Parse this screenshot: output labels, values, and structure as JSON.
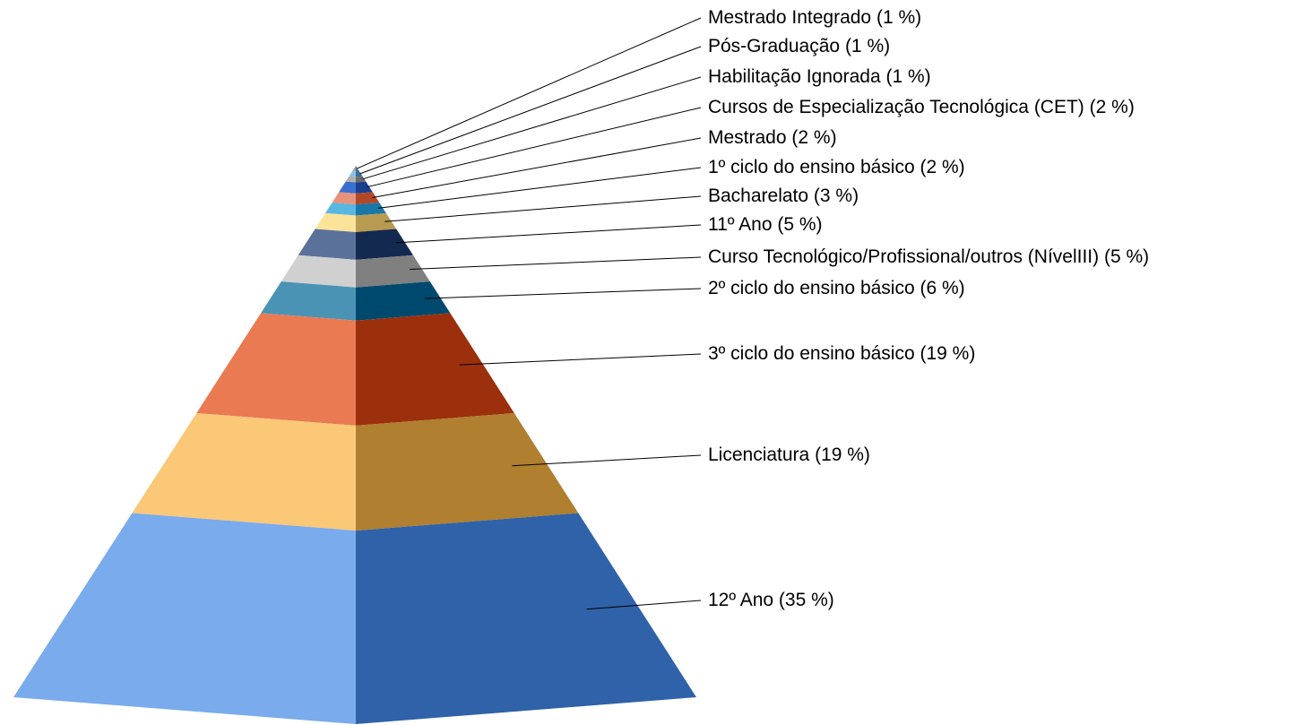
{
  "chart_data": {
    "type": "pyramid",
    "categories": [
      "Mestrado Integrado",
      "Pós-Graduação",
      "Habilitação Ignorada",
      "Cursos de Especialização Tecnológica (CET)",
      "Mestrado",
      "1º ciclo do ensino básico",
      "Bacharelato",
      "11º Ano",
      "Curso Tecnológico/Profissional/outros (NívelIII)",
      "2º ciclo do ensino básico",
      "3º ciclo do ensino básico",
      "Licenciatura",
      "12º Ano"
    ],
    "values": [
      1,
      1,
      1,
      2,
      2,
      2,
      3,
      5,
      5,
      6,
      19,
      19,
      35
    ],
    "value_labels": [
      "(1 %)",
      "(1 %)",
      "(1 %)",
      "(2 %)",
      "(2 %)",
      "(2 %)",
      "(3 %)",
      "(5 %)",
      "(5 %)",
      "(6 %)",
      "(19 %)",
      "(19 %)",
      "(35 %)"
    ],
    "colors": [
      [
        "#9aa4ad",
        "#5f6a74"
      ],
      [
        "#8cc2e8",
        "#3a6f9a"
      ],
      [
        "#b0b0b0",
        "#6a6a6a"
      ],
      [
        "#3a6fd0",
        "#1a3f90"
      ],
      [
        "#e8927a",
        "#b04828"
      ],
      [
        "#5ab8e0",
        "#1a78a8"
      ],
      [
        "#fbe39a",
        "#b89a50"
      ],
      [
        "#5a7199",
        "#13294f"
      ],
      [
        "#d0d0d0",
        "#808080"
      ],
      [
        "#4b93b5",
        "#00496e"
      ],
      [
        "#e97a52",
        "#9c2f0c"
      ],
      [
        "#fbc878",
        "#b07f30"
      ],
      [
        "#7aabed",
        "#2f62a8"
      ]
    ]
  }
}
